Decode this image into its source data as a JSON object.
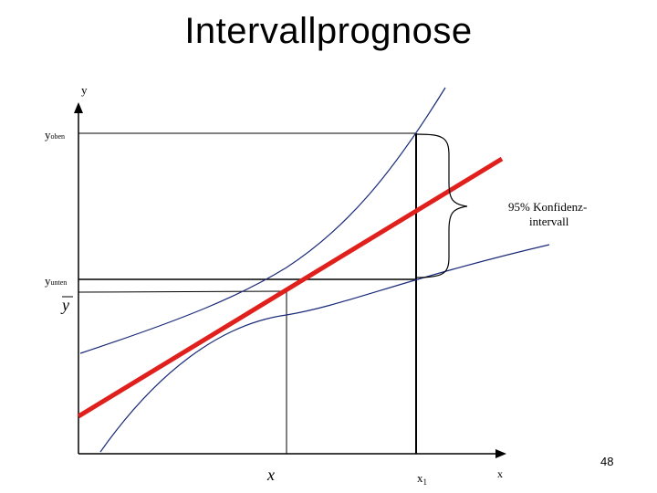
{
  "slide": {
    "title": "Intervallprognose",
    "page_number": "48"
  },
  "diagram": {
    "y_axis_label": "y",
    "x_axis_label": "x",
    "y_upper_label": {
      "base": "y",
      "sub": "oben"
    },
    "y_lower_label": {
      "base": "y",
      "sub": "unten"
    },
    "y_mean_label": "y",
    "x_mean_label": "x",
    "x1_label": {
      "base": "x",
      "sub": "1"
    },
    "annotation_line1": "95% Konfidenz-",
    "annotation_line2": "intervall",
    "colors": {
      "regression_line": "#e0201c",
      "confidence_bands": "#1a2a7a",
      "axes": "#000000"
    }
  }
}
